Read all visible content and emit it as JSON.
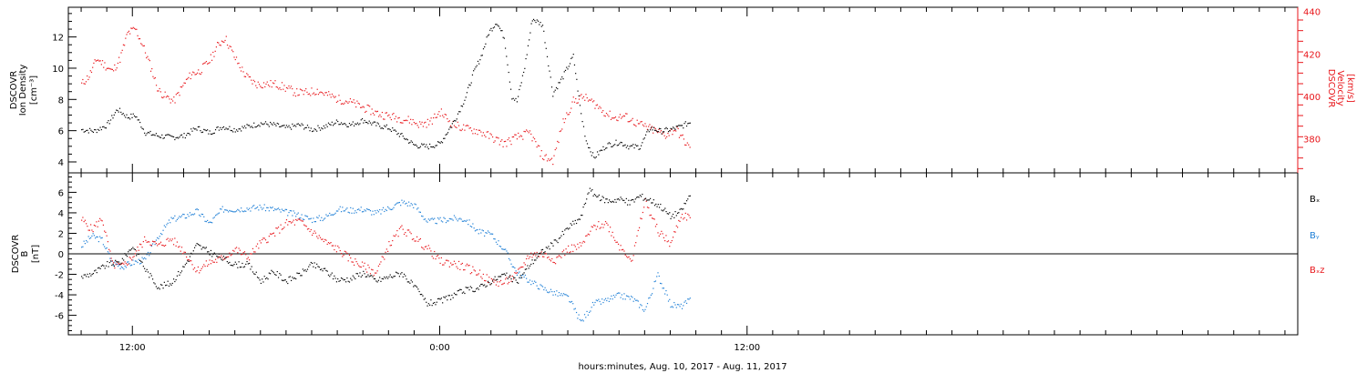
{
  "colors": {
    "black": "#000000",
    "red": "#e8161b",
    "blue": "#1e7fd6"
  },
  "xaxis": {
    "title": "hours:minutes, Aug. 10, 2017 - Aug. 11, 2017",
    "start_hour": 9.5,
    "end_hour": 57.5,
    "minor_tick_hours": 1,
    "data_end_hour": 33.8
  },
  "panels": {
    "top": {
      "left_label": [
        "DSCOVR",
        "Ion Density",
        "[cm⁻³]"
      ],
      "right_label": [
        "DSCOVR",
        "Velocity",
        "[km/s]"
      ]
    },
    "bottom": {
      "left_label": [
        "DSCOVR",
        "B",
        "[nT]"
      ],
      "legend": [
        "Bₓ",
        "Bᵧ",
        "Bₓz"
      ]
    }
  },
  "chart_data": [
    {
      "type": "scatter",
      "title": "",
      "xlabel": "hours:minutes, Aug. 10, 2017 - Aug. 11, 2017",
      "x_ticks": [
        {
          "hour": 12,
          "label": "12:00"
        },
        {
          "hour": 24,
          "label": "0:00"
        },
        {
          "hour": 36,
          "label": "12:00"
        }
      ],
      "y_left": {
        "label": "DSCOVR Ion Density [cm⁻³]",
        "ylim": [
          3.3,
          13.9
        ],
        "ticks": [
          4,
          6,
          8,
          10,
          12
        ]
      },
      "y_right": {
        "label": "DSCOVR Velocity [km/s]",
        "ylim": [
          364,
          442
        ],
        "ticks": [
          380,
          400,
          420,
          440
        ]
      },
      "grid": false,
      "series": [
        {
          "name": "Ion Density",
          "axis": "left",
          "color": "#000000",
          "x": [
            10.0,
            10.5,
            11.0,
            11.4,
            11.8,
            12.1,
            12.5,
            13.0,
            13.5,
            14.0,
            14.5,
            15.0,
            15.5,
            16.0,
            16.5,
            17.0,
            17.5,
            18.0,
            18.5,
            19.0,
            19.5,
            20.0,
            20.5,
            21.0,
            21.5,
            22.0,
            22.5,
            23.0,
            23.5,
            24.0,
            24.3,
            24.6,
            25.0,
            25.3,
            25.6,
            25.9,
            26.2,
            26.5,
            26.8,
            27.0,
            27.3,
            27.6,
            28.0,
            28.4,
            28.8,
            29.2,
            29.5,
            29.7,
            30.0,
            30.5,
            31.0,
            31.4,
            31.8,
            32.2,
            32.6,
            33.0,
            33.4,
            33.8
          ],
          "y": [
            6.1,
            6.0,
            6.4,
            7.4,
            6.9,
            7.0,
            5.9,
            5.7,
            5.6,
            5.7,
            6.2,
            5.9,
            6.3,
            6.1,
            6.3,
            6.5,
            6.4,
            6.2,
            6.4,
            6.1,
            6.3,
            6.6,
            6.4,
            6.7,
            6.4,
            6.2,
            5.7,
            5.1,
            5.0,
            5.2,
            6.0,
            6.8,
            8.2,
            9.7,
            10.8,
            12.3,
            13.0,
            12.0,
            8.2,
            7.9,
            10.1,
            13.2,
            12.8,
            8.4,
            9.5,
            10.8,
            7.1,
            5.4,
            4.3,
            5.1,
            5.3,
            5.0,
            5.0,
            6.2,
            6.0,
            6.1,
            6.3,
            6.6
          ]
        },
        {
          "name": "Velocity",
          "axis": "right",
          "color": "#e8161b",
          "x": [
            10.0,
            10.3,
            10.6,
            10.9,
            11.2,
            11.5,
            11.8,
            12.1,
            12.4,
            12.7,
            13.0,
            13.3,
            13.6,
            14.0,
            14.3,
            14.6,
            15.0,
            15.3,
            15.6,
            16.0,
            16.4,
            16.8,
            17.2,
            17.6,
            18.0,
            18.4,
            18.8,
            19.2,
            19.6,
            20.0,
            20.4,
            20.8,
            21.2,
            21.6,
            22.0,
            22.4,
            22.8,
            23.2,
            23.6,
            24.0,
            24.5,
            25.0,
            25.5,
            26.0,
            26.5,
            27.0,
            27.5,
            28.0,
            28.4,
            28.8,
            29.2,
            29.6,
            30.0,
            30.4,
            30.8,
            31.2,
            31.6,
            32.0,
            32.4,
            32.8,
            33.2,
            33.6,
            33.8
          ],
          "y": [
            406,
            410,
            418,
            415,
            412,
            418,
            430,
            432,
            424,
            414,
            403,
            400,
            398,
            406,
            411,
            412,
            417,
            424,
            428,
            418,
            410,
            406,
            406,
            406,
            404,
            402,
            402,
            403,
            401,
            399,
            398,
            396,
            394,
            392,
            391,
            390,
            389,
            387,
            388,
            393,
            387,
            385,
            384,
            381,
            378,
            381,
            383,
            372,
            370,
            388,
            398,
            400,
            397,
            393,
            390,
            391,
            388,
            386,
            384,
            382,
            385,
            378,
            375
          ]
        }
      ]
    },
    {
      "type": "scatter",
      "title": "",
      "xlabel": "hours:minutes, Aug. 10, 2017 - Aug. 11, 2017",
      "y_left": {
        "label": "DSCOVR B [nT]",
        "ylim": [
          -7.9,
          7.9
        ],
        "ticks": [
          -6,
          -4,
          -2,
          0,
          2,
          4,
          6
        ]
      },
      "zero_line": true,
      "grid": false,
      "series": [
        {
          "name": "Bₓ",
          "color": "#000000",
          "x": [
            10.0,
            10.5,
            11.0,
            11.5,
            12.0,
            12.5,
            13.0,
            13.5,
            14.0,
            14.5,
            15.0,
            15.5,
            16.0,
            16.5,
            17.0,
            17.5,
            18.0,
            18.5,
            19.0,
            19.5,
            20.0,
            20.5,
            21.0,
            21.5,
            22.0,
            22.5,
            23.0,
            23.5,
            24.0,
            24.5,
            25.0,
            25.5,
            26.0,
            26.5,
            27.0,
            27.5,
            28.0,
            28.5,
            29.0,
            29.5,
            29.8,
            30.2,
            30.6,
            31.0,
            31.4,
            31.8,
            32.2,
            32.6,
            33.0,
            33.4,
            33.8
          ],
          "y": [
            -2.2,
            -1.8,
            -1.0,
            -0.8,
            0.8,
            -1.5,
            -3.2,
            -2.8,
            -1.2,
            0.9,
            0.2,
            -0.4,
            -1.0,
            -1.0,
            -2.6,
            -1.7,
            -2.6,
            -2.0,
            -1.0,
            -1.6,
            -2.5,
            -2.4,
            -1.8,
            -2.6,
            -2.2,
            -1.8,
            -3.2,
            -4.8,
            -4.6,
            -4.0,
            -3.5,
            -3.3,
            -2.6,
            -2.0,
            -2.7,
            -1.0,
            0.3,
            1.2,
            2.6,
            3.6,
            6.3,
            5.5,
            5.2,
            5.4,
            5.0,
            5.7,
            5.3,
            4.7,
            3.7,
            4.2,
            6.0
          ]
        },
        {
          "name": "Bᵧ",
          "color": "#1e7fd6",
          "x": [
            10.0,
            10.4,
            10.8,
            11.2,
            11.6,
            12.0,
            12.5,
            13.0,
            13.5,
            14.0,
            14.5,
            15.0,
            15.5,
            16.0,
            16.5,
            17.0,
            17.5,
            18.0,
            18.5,
            19.0,
            19.5,
            20.0,
            20.5,
            21.0,
            21.5,
            22.0,
            22.5,
            23.0,
            23.5,
            24.0,
            24.5,
            25.0,
            25.5,
            26.0,
            26.5,
            27.0,
            27.5,
            28.0,
            28.5,
            29.0,
            29.5,
            30.0,
            30.5,
            31.0,
            31.5,
            32.0,
            32.5,
            33.0,
            33.4,
            33.8
          ],
          "y": [
            0.8,
            1.8,
            1.4,
            -0.8,
            -1.2,
            -0.8,
            -0.5,
            1.8,
            3.4,
            3.7,
            4.2,
            3.0,
            4.4,
            4.4,
            4.5,
            4.6,
            4.4,
            4.1,
            3.8,
            3.4,
            3.6,
            4.4,
            4.3,
            4.4,
            4.0,
            4.5,
            5.1,
            4.8,
            3.2,
            3.3,
            3.5,
            3.4,
            2.2,
            1.9,
            0.5,
            -1.8,
            -2.6,
            -3.3,
            -3.8,
            -4.2,
            -6.6,
            -4.8,
            -4.5,
            -4.0,
            -4.3,
            -5.4,
            -2.0,
            -4.9,
            -5.1,
            -4.4
          ]
        },
        {
          "name": "Bₓz",
          "color": "#e8161b",
          "x": [
            10.0,
            10.4,
            10.8,
            11.2,
            11.6,
            12.0,
            12.5,
            13.0,
            13.5,
            14.0,
            14.5,
            15.0,
            15.5,
            16.0,
            16.5,
            17.0,
            17.5,
            18.0,
            18.5,
            19.0,
            19.5,
            20.0,
            20.5,
            21.0,
            21.5,
            22.0,
            22.5,
            23.0,
            23.5,
            24.0,
            24.5,
            25.0,
            25.5,
            26.0,
            26.5,
            27.0,
            27.5,
            28.0,
            28.5,
            29.0,
            29.5,
            30.0,
            30.5,
            31.0,
            31.5,
            32.0,
            32.5,
            33.0,
            33.4,
            33.8
          ],
          "y": [
            3.4,
            2.4,
            3.5,
            -1.0,
            -1.2,
            -0.2,
            1.5,
            0.8,
            1.5,
            0.3,
            -1.6,
            -0.8,
            -0.4,
            0.5,
            -0.3,
            1.1,
            2.0,
            3.0,
            3.2,
            2.2,
            1.2,
            0.5,
            -0.5,
            -1.2,
            -1.8,
            0.9,
            2.5,
            1.6,
            0.6,
            -0.7,
            -0.9,
            -1.3,
            -1.8,
            -2.7,
            -2.8,
            -2.0,
            0.0,
            0.0,
            -0.5,
            0.5,
            0.8,
            2.7,
            3.0,
            0.8,
            -0.5,
            5.2,
            2.3,
            1.0,
            3.8,
            3.6
          ]
        }
      ]
    }
  ]
}
